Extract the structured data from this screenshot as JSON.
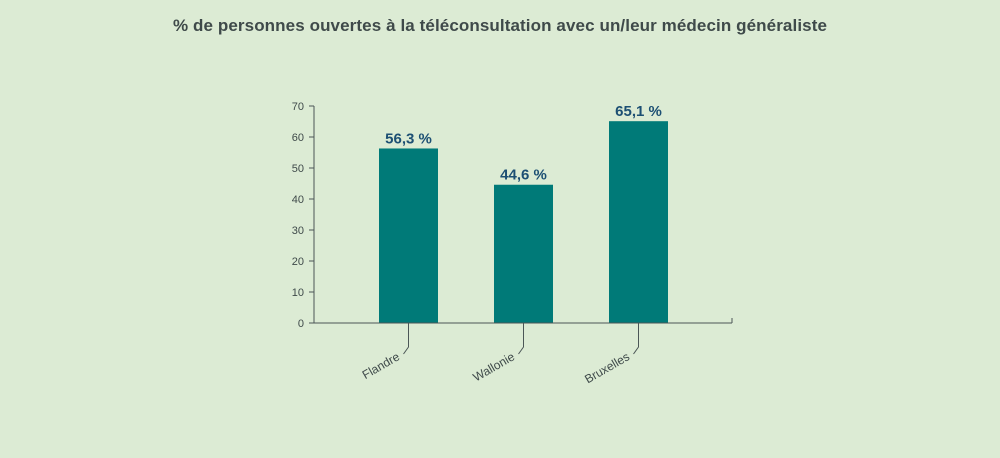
{
  "colors": {
    "background": "#dcebd4",
    "bar": "#007a78",
    "axis": "#4b5656",
    "text": "#3f4a4a",
    "value_label": "#1c4f73"
  },
  "chart_data": {
    "type": "bar",
    "title": "% de personnes ouvertes à la téléconsultation avec un/leur médecin généraliste",
    "xlabel": "",
    "ylabel": "",
    "ylim": [
      0,
      70
    ],
    "yticks": [
      0,
      10,
      20,
      30,
      40,
      50,
      60,
      70
    ],
    "categories": [
      "Flandre",
      "Wallonie",
      "Bruxelles"
    ],
    "values": [
      56.3,
      44.6,
      65.1
    ],
    "value_labels": [
      "56,3 %",
      "44,6 %",
      "65,1 %"
    ],
    "grid": false,
    "legend": "none"
  }
}
